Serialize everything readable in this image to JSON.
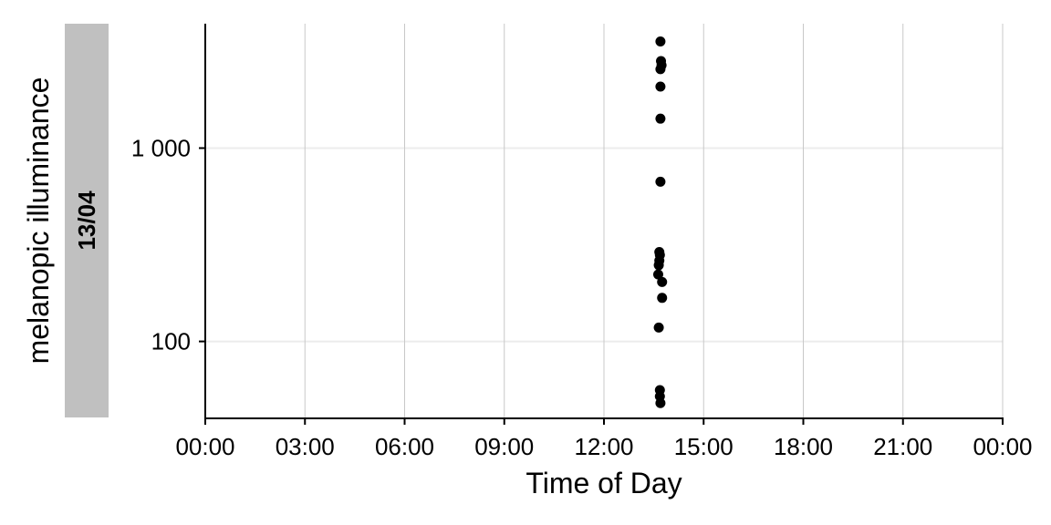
{
  "chart_data": {
    "type": "scatter",
    "xlabel": "Time of Day",
    "ylabel": "melanopic illuminance",
    "facet_label": "13/04",
    "x_scale": "time-of-day",
    "y_scale": "log10",
    "xlim": [
      "00:00",
      "24:00"
    ],
    "ylim": [
      40,
      4400
    ],
    "x_ticks": [
      "00:00",
      "03:00",
      "06:00",
      "09:00",
      "12:00",
      "15:00",
      "18:00",
      "21:00",
      "00:00"
    ],
    "y_ticks": [
      {
        "value": 100,
        "label": "100"
      },
      {
        "value": 1000,
        "label": "1 000"
      }
    ],
    "grid": {
      "vertical_major": true,
      "horizontal_major": true
    },
    "colors": {
      "points": "#000000",
      "strip": "#c0c0c0",
      "grid_x": "#c8c8c8",
      "grid_y": "#ececec"
    },
    "points": [
      {
        "x": "13:42",
        "y": 3560
      },
      {
        "x": "13:43",
        "y": 2820
      },
      {
        "x": "13:44",
        "y": 2680
      },
      {
        "x": "13:42",
        "y": 2560
      },
      {
        "x": "13:42",
        "y": 2080
      },
      {
        "x": "13:42",
        "y": 1420
      },
      {
        "x": "13:42",
        "y": 670
      },
      {
        "x": "13:40",
        "y": 290
      },
      {
        "x": "13:41",
        "y": 280
      },
      {
        "x": "13:40",
        "y": 262
      },
      {
        "x": "13:39",
        "y": 248
      },
      {
        "x": "13:38",
        "y": 222
      },
      {
        "x": "13:45",
        "y": 203
      },
      {
        "x": "13:45",
        "y": 168
      },
      {
        "x": "13:39",
        "y": 118
      },
      {
        "x": "13:41",
        "y": 56
      },
      {
        "x": "13:41",
        "y": 52
      },
      {
        "x": "13:42",
        "y": 48
      }
    ]
  }
}
